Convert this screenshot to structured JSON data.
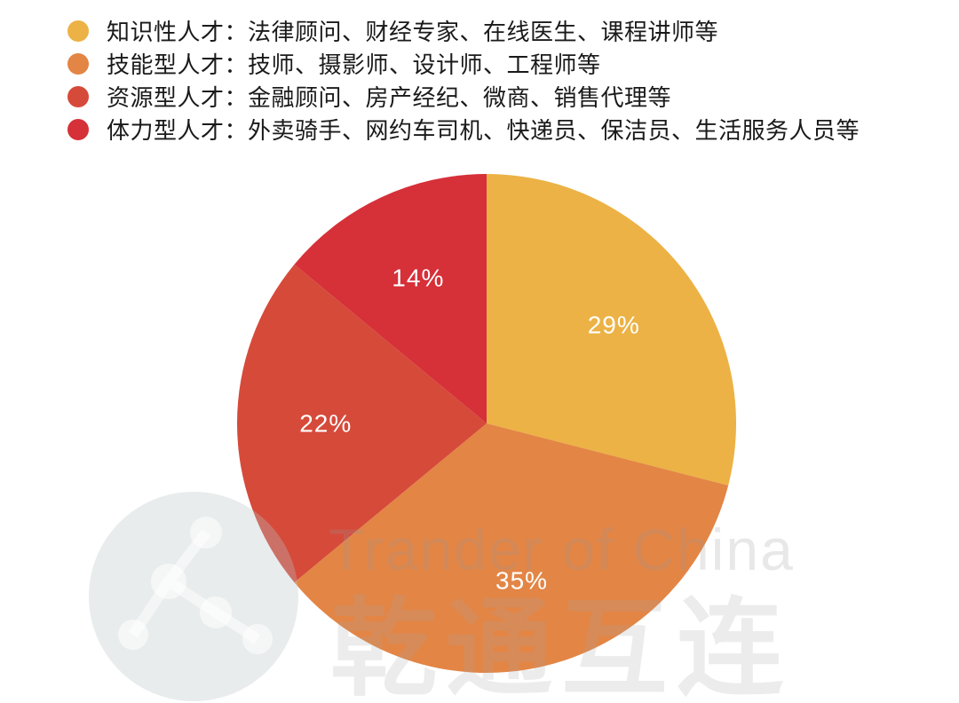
{
  "chart_data": {
    "type": "pie",
    "title": "",
    "categories": [
      "知识性人才：法律顾问、财经专家、在线医生、课程讲师等",
      "技能型人才：技师、摄影师、设计师、工程师等",
      "资源型人才：金融顾问、房产经纪、微商、销售代理等",
      "体力型人才：外卖骑手、网约车司机、快递员、保洁员、生活服务人员等"
    ],
    "values": [
      29,
      35,
      22,
      14
    ],
    "value_labels": [
      "29%",
      "35%",
      "22%",
      "14%"
    ],
    "colors": [
      "#ecb245",
      "#e38545",
      "#d64a3a",
      "#d63038"
    ],
    "start_angle_deg": 0,
    "direction": "clockwise",
    "legend_position": "top-left"
  },
  "watermark": {
    "text": "Trander of China",
    "brand": "乾通互连",
    "icon": "molecule-network-icon"
  }
}
